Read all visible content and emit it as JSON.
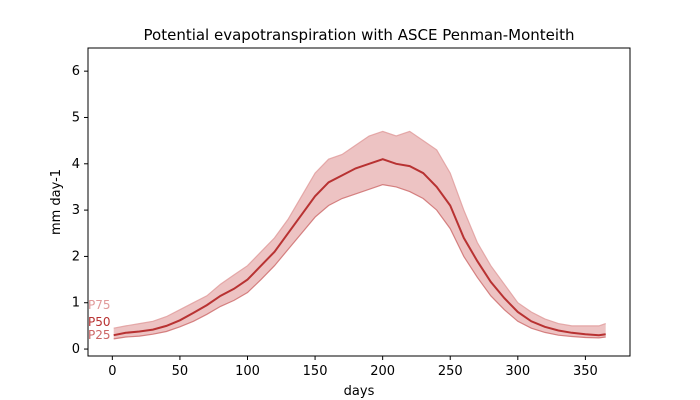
{
  "chart_data": {
    "type": "line",
    "title": "Potential evapotranspiration with ASCE Penman-Monteith",
    "xlabel": "days",
    "ylabel": "mm day-1",
    "xlim": [
      -18,
      383
    ],
    "ylim": [
      -0.15,
      6.5
    ],
    "xticks": [
      0,
      50,
      100,
      150,
      200,
      250,
      300,
      350
    ],
    "yticks": [
      0,
      1,
      2,
      3,
      4,
      5,
      6
    ],
    "grid": false,
    "series": [
      {
        "name": "P75",
        "color": "#e09a9a",
        "x": [
          1,
          10,
          20,
          30,
          40,
          50,
          60,
          70,
          80,
          90,
          100,
          110,
          120,
          130,
          140,
          150,
          160,
          170,
          180,
          190,
          200,
          210,
          220,
          230,
          240,
          250,
          260,
          270,
          280,
          290,
          300,
          310,
          320,
          330,
          340,
          350,
          360,
          365
        ],
        "values": [
          0.45,
          0.5,
          0.55,
          0.6,
          0.7,
          0.85,
          1.0,
          1.15,
          1.4,
          1.6,
          1.8,
          2.1,
          2.4,
          2.8,
          3.3,
          3.8,
          4.1,
          4.2,
          4.4,
          4.6,
          4.7,
          4.6,
          4.7,
          4.5,
          4.3,
          3.8,
          3.0,
          2.3,
          1.8,
          1.4,
          1.0,
          0.8,
          0.65,
          0.55,
          0.5,
          0.5,
          0.5,
          0.55
        ]
      },
      {
        "name": "P50",
        "color": "#b83232",
        "x": [
          1,
          10,
          20,
          30,
          40,
          50,
          60,
          70,
          80,
          90,
          100,
          110,
          120,
          130,
          140,
          150,
          160,
          170,
          180,
          190,
          200,
          210,
          220,
          230,
          240,
          250,
          260,
          270,
          280,
          290,
          300,
          310,
          320,
          330,
          340,
          350,
          360,
          365
        ],
        "values": [
          0.3,
          0.35,
          0.38,
          0.42,
          0.5,
          0.62,
          0.78,
          0.95,
          1.15,
          1.3,
          1.5,
          1.8,
          2.1,
          2.5,
          2.9,
          3.3,
          3.6,
          3.75,
          3.9,
          4.0,
          4.1,
          4.0,
          3.95,
          3.8,
          3.5,
          3.1,
          2.4,
          1.9,
          1.45,
          1.1,
          0.8,
          0.6,
          0.48,
          0.4,
          0.35,
          0.32,
          0.3,
          0.32
        ]
      },
      {
        "name": "P25",
        "color": "#cc6666",
        "x": [
          1,
          10,
          20,
          30,
          40,
          50,
          60,
          70,
          80,
          90,
          100,
          110,
          120,
          130,
          140,
          150,
          160,
          170,
          180,
          190,
          200,
          210,
          220,
          230,
          240,
          250,
          260,
          270,
          280,
          290,
          300,
          310,
          320,
          330,
          340,
          350,
          360,
          365
        ],
        "values": [
          0.22,
          0.26,
          0.28,
          0.32,
          0.38,
          0.48,
          0.6,
          0.75,
          0.92,
          1.05,
          1.22,
          1.5,
          1.8,
          2.15,
          2.5,
          2.85,
          3.1,
          3.25,
          3.35,
          3.45,
          3.55,
          3.5,
          3.4,
          3.25,
          3.0,
          2.6,
          2.0,
          1.55,
          1.15,
          0.85,
          0.6,
          0.45,
          0.36,
          0.3,
          0.27,
          0.25,
          0.24,
          0.26
        ]
      }
    ],
    "band_labels": [
      "P75",
      "P50",
      "P25"
    ]
  }
}
